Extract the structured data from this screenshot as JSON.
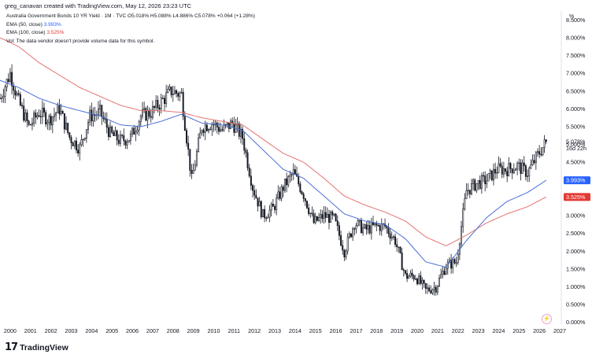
{
  "header": {
    "creator_line": "greg_canavan created with TradingView.com, May 12, 2026 23:23 UTC",
    "symbol_line": "Australia Government Bonds 10 YR Yield · 1M · TVC  O5.018%  H5.088%  L4.886%  C5.078%  +0.064 (+1.28%)",
    "ema50_label": "EMA (50, close)",
    "ema50_value": "3.993%",
    "ema100_label": "EMA (100, close)",
    "ema100_value": "3.525%",
    "vol_note": "Vol: The data vendor doesn't provide volume data for this symbol."
  },
  "axis": {
    "unit": "%",
    "countdown": "16d 22h"
  },
  "branding": {
    "logo_mark": "17",
    "name": "TradingView"
  },
  "colors": {
    "up": "#131722",
    "down": "#131722",
    "ema50": "#4a6fd6",
    "ema100": "#e57373",
    "ema50_tag": "#2962ff",
    "ema100_tag": "#e53935",
    "price_tag": "#131722"
  },
  "chart_data": {
    "type": "candlestick",
    "interval": "1M",
    "x_range": [
      "1999-07-01",
      "2027-01-01"
    ],
    "ylim": [
      -0.05,
      8.75
    ],
    "y_scale": "linear",
    "grid": false,
    "y_ticks": [
      "0.000%",
      "0.500%",
      "1.000%",
      "1.500%",
      "2.000%",
      "2.500%",
      "3.000%",
      "3.500%",
      "4.000%",
      "4.500%",
      "5.000%",
      "5.500%",
      "6.000%",
      "6.500%",
      "7.000%",
      "7.500%",
      "8.000%",
      "8.500%"
    ],
    "x_ticks": [
      "2000",
      "2001",
      "2002",
      "2003",
      "2004",
      "2005",
      "2006",
      "2007",
      "2008",
      "2009",
      "2010",
      "2011",
      "2012",
      "2013",
      "2014",
      "2015",
      "2016",
      "2017",
      "2018",
      "2019",
      "2020",
      "2021",
      "2022",
      "2023",
      "2024",
      "2025",
      "2026",
      "2027"
    ],
    "last_price_label": "5.078%",
    "ema50_label": "3.993%",
    "ema100_label": "3.525%",
    "close_path": [
      [
        "1999-07",
        6.3
      ],
      [
        "2000-01",
        7.0
      ],
      [
        "2000-06",
        6.2
      ],
      [
        "2000-12",
        5.5
      ],
      [
        "2001-06",
        5.9
      ],
      [
        "2001-12",
        5.7
      ],
      [
        "2002-06",
        6.0
      ],
      [
        "2002-12",
        5.2
      ],
      [
        "2003-06",
        4.9
      ],
      [
        "2003-12",
        5.8
      ],
      [
        "2004-06",
        5.9
      ],
      [
        "2004-12",
        5.3
      ],
      [
        "2005-06",
        5.1
      ],
      [
        "2005-12",
        5.2
      ],
      [
        "2006-06",
        5.8
      ],
      [
        "2006-12",
        5.9
      ],
      [
        "2007-06",
        6.2
      ],
      [
        "2007-12",
        6.5
      ],
      [
        "2008-06",
        6.4
      ],
      [
        "2008-12",
        4.0
      ],
      [
        "2009-06",
        5.5
      ],
      [
        "2009-12",
        5.6
      ],
      [
        "2010-06",
        5.4
      ],
      [
        "2010-12",
        5.6
      ],
      [
        "2011-06",
        5.2
      ],
      [
        "2011-12",
        3.8
      ],
      [
        "2012-06",
        3.0
      ],
      [
        "2012-12",
        3.2
      ],
      [
        "2013-06",
        3.8
      ],
      [
        "2013-12",
        4.2
      ],
      [
        "2014-06",
        3.6
      ],
      [
        "2014-12",
        2.8
      ],
      [
        "2015-06",
        3.0
      ],
      [
        "2015-12",
        2.9
      ],
      [
        "2016-06",
        2.0
      ],
      [
        "2016-12",
        2.8
      ],
      [
        "2017-06",
        2.6
      ],
      [
        "2017-12",
        2.7
      ],
      [
        "2018-06",
        2.7
      ],
      [
        "2018-12",
        2.3
      ],
      [
        "2019-06",
        1.3
      ],
      [
        "2019-12",
        1.3
      ],
      [
        "2020-06",
        0.9
      ],
      [
        "2020-12",
        1.0
      ],
      [
        "2021-06",
        1.6
      ],
      [
        "2021-12",
        1.7
      ],
      [
        "2022-06",
        3.7
      ],
      [
        "2022-12",
        3.9
      ],
      [
        "2023-06",
        4.0
      ],
      [
        "2023-12",
        4.3
      ],
      [
        "2024-06",
        4.3
      ],
      [
        "2024-12",
        4.4
      ],
      [
        "2025-06",
        4.2
      ],
      [
        "2025-12",
        4.7
      ],
      [
        "2026-05",
        5.078
      ]
    ],
    "ema50_path": [
      [
        "1999-07",
        6.8
      ],
      [
        "2000-06",
        6.6
      ],
      [
        "2001-06",
        6.3
      ],
      [
        "2002-06",
        6.1
      ],
      [
        "2003-06",
        5.95
      ],
      [
        "2004-06",
        5.8
      ],
      [
        "2005-06",
        5.55
      ],
      [
        "2006-06",
        5.5
      ],
      [
        "2007-06",
        5.65
      ],
      [
        "2008-06",
        5.85
      ],
      [
        "2009-06",
        5.6
      ],
      [
        "2010-06",
        5.55
      ],
      [
        "2011-06",
        5.4
      ],
      [
        "2012-06",
        4.85
      ],
      [
        "2013-06",
        4.3
      ],
      [
        "2014-06",
        4.05
      ],
      [
        "2015-06",
        3.55
      ],
      [
        "2016-06",
        3.05
      ],
      [
        "2017-06",
        2.85
      ],
      [
        "2018-06",
        2.75
      ],
      [
        "2019-06",
        2.35
      ],
      [
        "2020-06",
        1.7
      ],
      [
        "2021-06",
        1.55
      ],
      [
        "2022-06",
        2.3
      ],
      [
        "2023-06",
        2.95
      ],
      [
        "2024-06",
        3.4
      ],
      [
        "2025-06",
        3.65
      ],
      [
        "2026-05",
        3.993
      ]
    ],
    "ema100_path": [
      [
        "1999-07",
        8.0
      ],
      [
        "2000-06",
        7.75
      ],
      [
        "2001-06",
        7.3
      ],
      [
        "2002-06",
        6.95
      ],
      [
        "2003-06",
        6.6
      ],
      [
        "2004-06",
        6.35
      ],
      [
        "2005-06",
        6.1
      ],
      [
        "2006-06",
        5.95
      ],
      [
        "2007-06",
        5.95
      ],
      [
        "2008-06",
        5.9
      ],
      [
        "2009-06",
        5.75
      ],
      [
        "2010-06",
        5.65
      ],
      [
        "2011-06",
        5.55
      ],
      [
        "2012-06",
        5.15
      ],
      [
        "2013-06",
        4.75
      ],
      [
        "2014-06",
        4.5
      ],
      [
        "2015-06",
        4.05
      ],
      [
        "2016-06",
        3.55
      ],
      [
        "2017-06",
        3.3
      ],
      [
        "2018-06",
        3.1
      ],
      [
        "2019-06",
        2.85
      ],
      [
        "2020-06",
        2.4
      ],
      [
        "2021-06",
        2.15
      ],
      [
        "2022-06",
        2.45
      ],
      [
        "2023-06",
        2.8
      ],
      [
        "2024-06",
        3.05
      ],
      [
        "2025-06",
        3.25
      ],
      [
        "2026-05",
        3.525
      ]
    ]
  }
}
